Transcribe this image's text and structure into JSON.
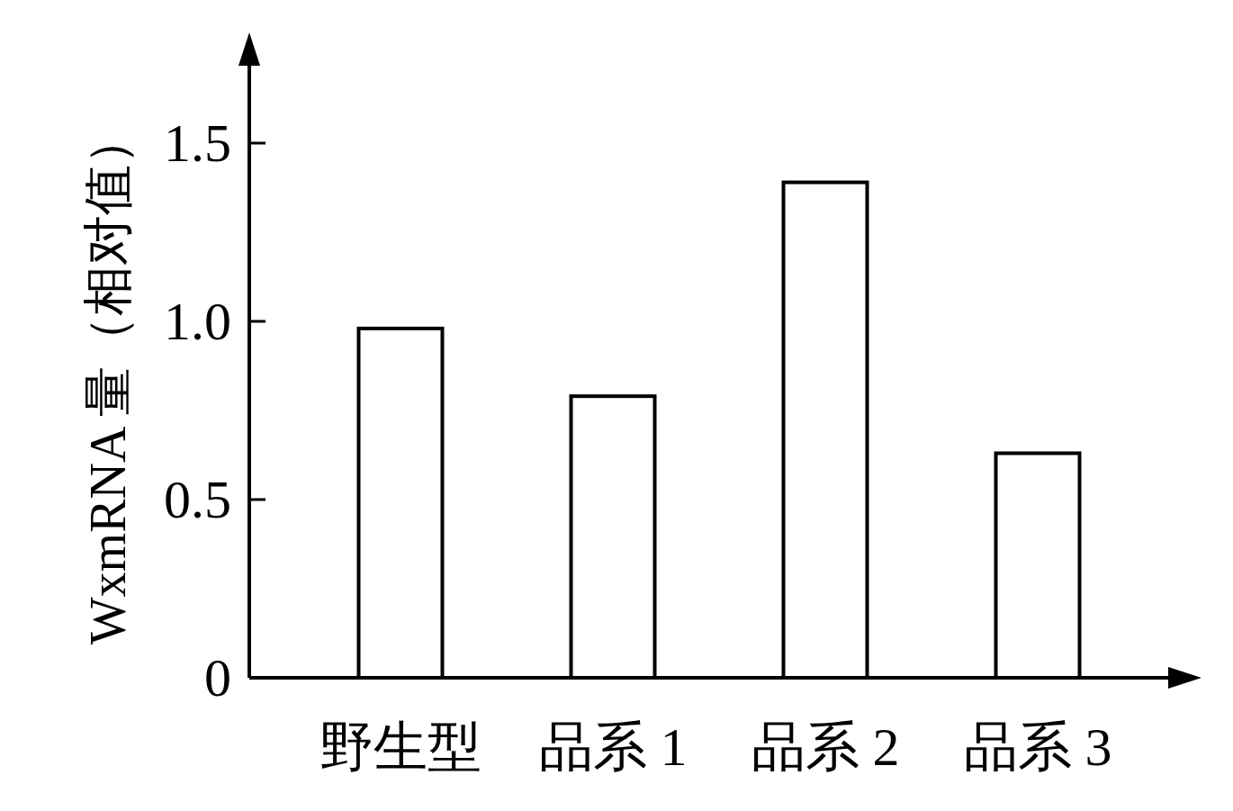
{
  "chart_data": {
    "type": "bar",
    "ylabel": "WxmRNA 量（相对值）",
    "categories": [
      "野生型",
      "品系 1",
      "品系 2",
      "品系 3"
    ],
    "values": [
      0.98,
      0.79,
      1.39,
      0.63
    ],
    "color": "#ffffff",
    "ylim": [
      0,
      1.75
    ],
    "yticks": [
      0,
      0.5,
      {
        "value": 1,
        "label": "1.0"
      },
      1.5
    ]
  }
}
